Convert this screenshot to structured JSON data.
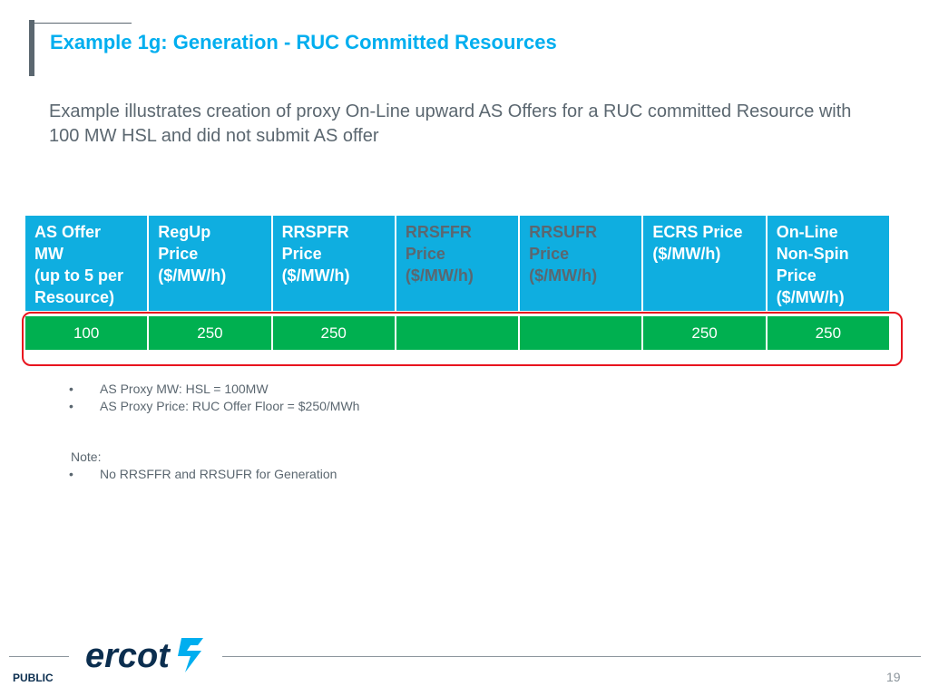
{
  "title": "Example 1g: Generation - RUC Committed Resources",
  "subtitle": "Example illustrates creation of proxy On-Line upward AS Offers for a RUC committed Resource with 100 MW HSL and did not submit AS offer",
  "table": {
    "headers": [
      {
        "lines": [
          "AS Offer",
          "MW",
          "(up to 5 per",
          "Resource)"
        ],
        "dim": false
      },
      {
        "lines": [
          "RegUp",
          "Price",
          "($/MW/h)"
        ],
        "dim": false
      },
      {
        "lines": [
          "RRSPFR",
          "Price",
          "($/MW/h)"
        ],
        "dim": false
      },
      {
        "lines": [
          "RRSFFR",
          "Price",
          "($/MW/h)"
        ],
        "dim": true
      },
      {
        "lines": [
          "RRSUFR",
          "Price",
          "($/MW/h)"
        ],
        "dim": true
      },
      {
        "lines": [
          "ECRS Price",
          "($/MW/h)"
        ],
        "dim": false
      },
      {
        "lines": [
          "On-Line",
          "Non-Spin",
          "Price",
          "($/MW/h)"
        ],
        "dim": false
      }
    ],
    "row": [
      "100",
      "250",
      "250",
      "",
      "",
      "250",
      "250"
    ]
  },
  "bullets": [
    "AS Proxy MW: HSL = 100MW",
    "AS Proxy Price:  RUC Offer Floor = $250/MWh"
  ],
  "note": {
    "label": "Note:",
    "items": [
      "No RRSFFR and RRSUFR for Generation"
    ]
  },
  "footer": {
    "logo_text": "ercot",
    "classification": "PUBLIC",
    "page_number": "19"
  },
  "colors": {
    "accent": "#00aeef",
    "header_fill": "#0faee0",
    "data_fill": "#00b050",
    "highlight": "#e8141e",
    "text_gray": "#5b6770"
  }
}
